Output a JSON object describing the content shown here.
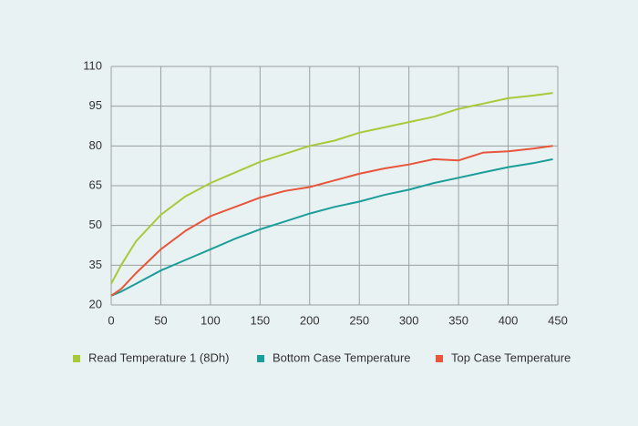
{
  "chart_data": {
    "type": "line",
    "x": [
      0,
      10,
      25,
      50,
      75,
      100,
      125,
      150,
      175,
      200,
      225,
      250,
      275,
      300,
      325,
      350,
      375,
      400,
      425,
      445
    ],
    "series": [
      {
        "name": "Read Temperature 1 (8Dh)",
        "color": "#a8c93a",
        "values": [
          28,
          35,
          44,
          54,
          61,
          66,
          70,
          74,
          77,
          80,
          82,
          85,
          87,
          89,
          91,
          94,
          96,
          98,
          99,
          100
        ]
      },
      {
        "name": "Bottom Case Temperature",
        "color": "#1b9e9a",
        "values": [
          23.5,
          25,
          28,
          33,
          37,
          41,
          45,
          48.5,
          51.5,
          54.5,
          57,
          59,
          61.5,
          63.5,
          66,
          68,
          70,
          72,
          73.5,
          75
        ]
      },
      {
        "name": "Top Case Temperature",
        "color": "#e8553a",
        "values": [
          23.5,
          26,
          32,
          41,
          48,
          53.5,
          57,
          60.5,
          63,
          64.5,
          67,
          69.5,
          71.5,
          73,
          75,
          74.5,
          77.5,
          78,
          79,
          80
        ]
      }
    ],
    "xlim": [
      0,
      450
    ],
    "xticks": [
      0,
      50,
      100,
      150,
      200,
      250,
      300,
      350,
      400,
      450
    ],
    "ylim": [
      20,
      110
    ],
    "yticks": [
      20,
      35,
      50,
      65,
      80,
      95,
      110
    ],
    "grid": true,
    "legend": "bottom"
  }
}
